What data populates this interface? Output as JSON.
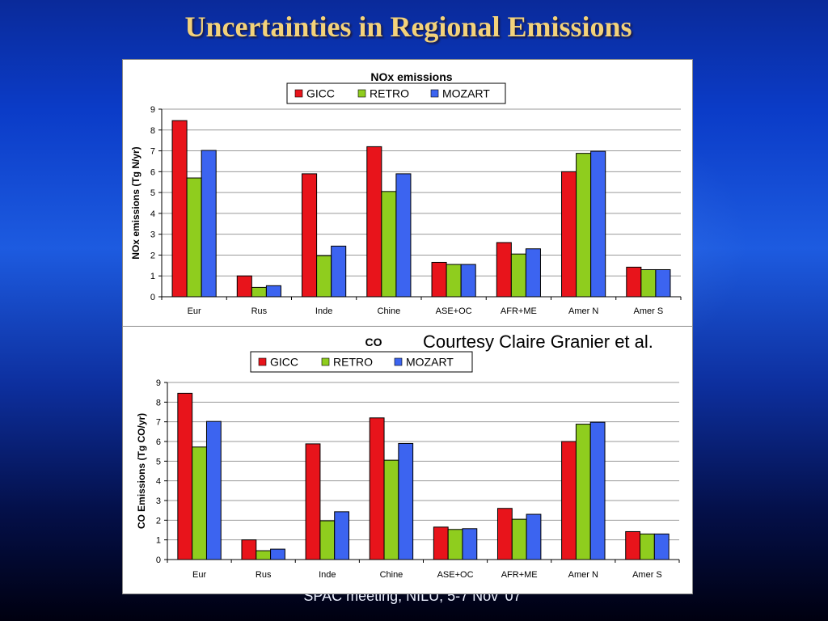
{
  "slide": {
    "title": "Uncertainties in Regional Emissions",
    "footer": "SPAC meeting, NILU, 5-7 Nov '07",
    "courtesy": "Courtesy Claire Granier et al."
  },
  "chart_data": [
    {
      "type": "bar",
      "title": "NOx emissions",
      "ylabel": "NOx emissions (Tg N/yr)",
      "xlabel": "",
      "ylim": [
        0,
        9
      ],
      "yticks": [
        "0",
        "1",
        "2",
        "3",
        "4",
        "5",
        "6",
        "7",
        "8",
        "9"
      ],
      "grid": true,
      "legend_position": "top-center",
      "categories": [
        "Eur",
        "Rus",
        "Inde",
        "Chine",
        "ASE+OC",
        "AFR+ME",
        "Amer N",
        "Amer S"
      ],
      "series": [
        {
          "name": "GICC",
          "color": "#e8141b",
          "values": [
            8.45,
            1.0,
            5.9,
            7.2,
            1.65,
            2.6,
            6.0,
            1.42
          ]
        },
        {
          "name": "RETRO",
          "color": "#8fcd1e",
          "values": [
            5.7,
            0.45,
            1.97,
            5.05,
            1.55,
            2.05,
            6.88,
            1.3
          ]
        },
        {
          "name": "MOZART",
          "color": "#3c64f0",
          "values": [
            7.02,
            0.53,
            2.43,
            5.9,
            1.55,
            2.3,
            6.98,
            1.3
          ]
        }
      ]
    },
    {
      "type": "bar",
      "title": "CO",
      "ylabel": "CO Emissions (Tg CO/yr)",
      "xlabel": "",
      "ylim": [
        0,
        9
      ],
      "yticks": [
        "0",
        "1",
        "2",
        "3",
        "4",
        "5",
        "6",
        "7",
        "8",
        "9"
      ],
      "grid": true,
      "legend_position": "top-center",
      "categories": [
        "Eur",
        "Rus",
        "Inde",
        "Chine",
        "ASE+OC",
        "AFR+ME",
        "Amer N",
        "Amer S"
      ],
      "series": [
        {
          "name": "GICC",
          "color": "#e8141b",
          "values": [
            8.45,
            1.0,
            5.88,
            7.2,
            1.65,
            2.6,
            6.0,
            1.42
          ]
        },
        {
          "name": "RETRO",
          "color": "#8fcd1e",
          "values": [
            5.72,
            0.45,
            1.97,
            5.05,
            1.53,
            2.05,
            6.88,
            1.3
          ]
        },
        {
          "name": "MOZART",
          "color": "#3c64f0",
          "values": [
            7.02,
            0.53,
            2.43,
            5.9,
            1.57,
            2.3,
            6.98,
            1.3
          ]
        }
      ]
    }
  ]
}
